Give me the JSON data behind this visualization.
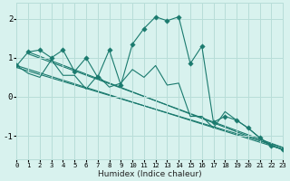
{
  "xlabel": "Humidex (Indice chaleur)",
  "bg_color": "#d8f2ee",
  "grid_color": "#b8ddd8",
  "line_color": "#1a7a6e",
  "xlim": [
    0,
    23
  ],
  "ylim": [
    -1.6,
    2.4
  ],
  "yticks": [
    -1,
    0,
    1,
    2
  ],
  "xticks": [
    0,
    1,
    2,
    3,
    4,
    5,
    6,
    7,
    8,
    9,
    10,
    11,
    12,
    13,
    14,
    15,
    16,
    17,
    18,
    19,
    20,
    21,
    22,
    23
  ],
  "main_x": [
    0,
    1,
    2,
    3,
    4,
    5,
    6,
    7,
    8,
    9,
    10,
    11,
    12,
    13,
    14,
    15,
    16,
    17,
    18,
    19,
    20,
    21,
    22,
    23
  ],
  "main_y": [
    0.8,
    1.15,
    1.2,
    1.0,
    1.2,
    0.65,
    1.0,
    0.5,
    1.2,
    0.3,
    1.35,
    1.75,
    2.05,
    1.95,
    2.05,
    0.85,
    1.3,
    -0.65,
    -0.5,
    -0.6,
    -0.8,
    -1.05,
    -1.25,
    -1.35
  ],
  "sec_x": [
    0,
    1,
    2,
    3,
    4,
    5,
    6,
    7,
    8,
    9,
    10,
    11,
    12,
    13,
    14,
    15,
    16,
    17,
    18,
    19,
    20,
    21,
    22,
    23
  ],
  "sec_y": [
    0.8,
    0.6,
    0.5,
    0.95,
    0.55,
    0.55,
    0.2,
    0.55,
    0.25,
    0.35,
    0.7,
    0.5,
    0.8,
    0.3,
    0.35,
    -0.5,
    -0.5,
    -0.8,
    -0.38,
    -0.6,
    -0.8,
    -1.05,
    -1.25,
    -1.35
  ],
  "trend_lines": [
    [
      [
        0,
        23
      ],
      [
        0.8,
        -1.35
      ]
    ],
    [
      [
        0,
        23
      ],
      [
        0.75,
        -1.3
      ]
    ],
    [
      [
        1,
        23
      ],
      [
        1.15,
        -1.35
      ]
    ],
    [
      [
        1,
        23
      ],
      [
        1.1,
        -1.3
      ]
    ]
  ],
  "markersize": 2.8
}
